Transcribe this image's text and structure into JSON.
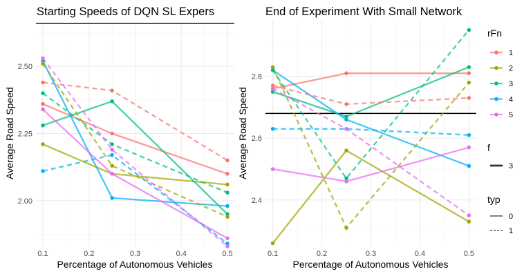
{
  "colors": {
    "1": "#F8766D",
    "2": "#A3A500",
    "3": "#00BF7D",
    "4": "#00B0F6",
    "5": "#E76BF3"
  },
  "chart_data": [
    {
      "type": "line",
      "title": "Starting Speeds of DQN SL Expers",
      "xlabel": "Percentage of Autonomous Vehicles",
      "ylabel": "Average Road Speed",
      "xlim": [
        0.085,
        0.515
      ],
      "ylim": [
        1.83,
        2.67
      ],
      "xticks": [
        0.1,
        0.2,
        0.3,
        0.4,
        0.5
      ],
      "xtick_labels": [
        "0.1",
        "0.2",
        "0.3",
        "0.4",
        "0.5"
      ],
      "yticks": [
        2.0,
        2.25,
        2.5
      ],
      "ytick_labels": [
        "2.00",
        "2.25",
        "2.50"
      ],
      "grid": true,
      "hline": 2.66,
      "series": [
        {
          "rFn": "1",
          "typ": "0",
          "x": [
            0.1,
            0.25,
            0.5
          ],
          "y": [
            2.36,
            2.25,
            2.1
          ]
        },
        {
          "rFn": "2",
          "typ": "0",
          "x": [
            0.1,
            0.25,
            0.5
          ],
          "y": [
            2.21,
            2.1,
            2.06
          ]
        },
        {
          "rFn": "3",
          "typ": "0",
          "x": [
            0.1,
            0.25,
            0.5
          ],
          "y": [
            2.28,
            2.37,
            1.95
          ]
        },
        {
          "rFn": "4",
          "typ": "0",
          "x": [
            0.1,
            0.25,
            0.5
          ],
          "y": [
            2.52,
            2.01,
            1.98
          ]
        },
        {
          "rFn": "5",
          "typ": "0",
          "x": [
            0.1,
            0.25,
            0.5
          ],
          "y": [
            2.34,
            2.1,
            1.86
          ]
        },
        {
          "rFn": "1",
          "typ": "1",
          "x": [
            0.1,
            0.25,
            0.5
          ],
          "y": [
            2.44,
            2.41,
            2.15
          ]
        },
        {
          "rFn": "2",
          "typ": "1",
          "x": [
            0.1,
            0.25,
            0.5
          ],
          "y": [
            2.51,
            2.13,
            1.94
          ]
        },
        {
          "rFn": "3",
          "typ": "1",
          "x": [
            0.1,
            0.25,
            0.5
          ],
          "y": [
            2.4,
            2.21,
            2.03
          ]
        },
        {
          "rFn": "4",
          "typ": "1",
          "x": [
            0.1,
            0.25,
            0.5
          ],
          "y": [
            2.11,
            2.17,
            1.84
          ]
        },
        {
          "rFn": "5",
          "typ": "1",
          "x": [
            0.1,
            0.25,
            0.5
          ],
          "y": [
            2.53,
            2.19,
            1.83
          ]
        }
      ]
    },
    {
      "type": "line",
      "title": "End of Experiment With Small Network",
      "xlabel": "Percentage of Autonomous Vehicles",
      "ylabel": "Average Road Speed",
      "xlim": [
        0.085,
        0.515
      ],
      "ylim": [
        2.25,
        2.98
      ],
      "xticks": [
        0.1,
        0.2,
        0.3,
        0.4,
        0.5
      ],
      "xtick_labels": [
        "0.1",
        "0.2",
        "0.3",
        "0.4",
        "0.5"
      ],
      "yticks": [
        2.4,
        2.6,
        2.8
      ],
      "ytick_labels": [
        "2.4",
        "2.6",
        "2.8"
      ],
      "grid": true,
      "hline": 2.68,
      "series": [
        {
          "rFn": "1",
          "typ": "0",
          "x": [
            0.1,
            0.25,
            0.5
          ],
          "y": [
            2.76,
            2.81,
            2.81
          ]
        },
        {
          "rFn": "2",
          "typ": "0",
          "x": [
            0.1,
            0.25,
            0.5
          ],
          "y": [
            2.26,
            2.56,
            2.33
          ]
        },
        {
          "rFn": "3",
          "typ": "0",
          "x": [
            0.1,
            0.25,
            0.5
          ],
          "y": [
            2.75,
            2.67,
            2.83
          ]
        },
        {
          "rFn": "4",
          "typ": "0",
          "x": [
            0.1,
            0.25,
            0.5
          ],
          "y": [
            2.82,
            2.66,
            2.51
          ]
        },
        {
          "rFn": "5",
          "typ": "0",
          "x": [
            0.1,
            0.25,
            0.5
          ],
          "y": [
            2.5,
            2.46,
            2.57
          ]
        },
        {
          "rFn": "1",
          "typ": "1",
          "x": [
            0.1,
            0.25,
            0.5
          ],
          "y": [
            2.77,
            2.71,
            2.73
          ]
        },
        {
          "rFn": "2",
          "typ": "1",
          "x": [
            0.1,
            0.25,
            0.5
          ],
          "y": [
            2.83,
            2.31,
            2.78
          ]
        },
        {
          "rFn": "3",
          "typ": "1",
          "x": [
            0.1,
            0.25,
            0.5
          ],
          "y": [
            2.82,
            2.47,
            2.95
          ]
        },
        {
          "rFn": "4",
          "typ": "1",
          "x": [
            0.1,
            0.25,
            0.5
          ],
          "y": [
            2.63,
            2.63,
            2.61
          ]
        },
        {
          "rFn": "5",
          "typ": "1",
          "x": [
            0.1,
            0.25,
            0.5
          ],
          "y": [
            2.76,
            2.63,
            2.35
          ]
        }
      ]
    }
  ],
  "legend": {
    "rfn_title": "rFn",
    "rfn_items": [
      "1",
      "2",
      "3",
      "4",
      "5"
    ],
    "f_title": "f",
    "f_items": [
      "3"
    ],
    "typ_title": "typ",
    "typ_items": [
      "0",
      "1"
    ]
  }
}
